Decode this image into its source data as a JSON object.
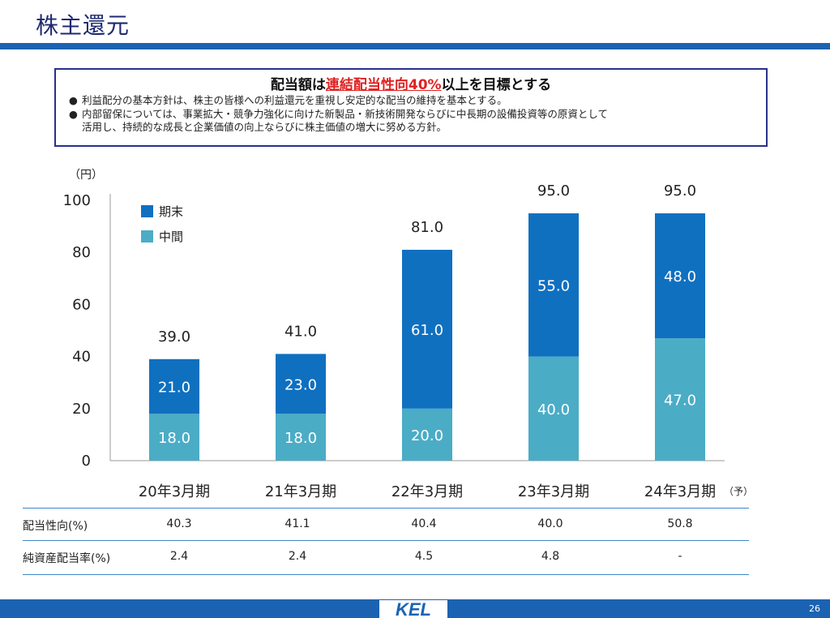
{
  "page": {
    "title": "株主還元",
    "page_number": "26",
    "logo_text": "KEL"
  },
  "policy": {
    "headline_prefix": "配当額は",
    "headline_highlight": "連結配当性向40%",
    "headline_suffix": "以上を目標とする",
    "bullets": [
      {
        "lines": [
          "利益配分の基本方針は、株主の皆様への利益還元を重視し安定的な配当の維持を基本とする。"
        ]
      },
      {
        "lines": [
          "内部留保については、事業拡大・競争力強化に向けた新製品・新技術開発ならびに中長期の設備投資等の原資として",
          "活用し、持続的な成長と企業価値の向上ならびに株主価値の増大に努める方針。"
        ]
      }
    ],
    "bullet_glyph": "●"
  },
  "chart_data": {
    "type": "bar",
    "stacked": true,
    "unit_label": "（円）",
    "categories": [
      "20年3月期",
      "21年3月期",
      "22年3月期",
      "23年3月期",
      "24年3月期"
    ],
    "category_suffixes": [
      "",
      "",
      "",
      "",
      "（予）"
    ],
    "series": [
      {
        "name": "中間",
        "values": [
          18.0,
          18.0,
          20.0,
          40.0,
          47.0
        ],
        "color": "#4bacc6",
        "label_color": "#ffffff"
      },
      {
        "name": "期末",
        "values": [
          21.0,
          23.0,
          61.0,
          55.0,
          48.0
        ],
        "color": "#0f70c0",
        "label_color": "#ffffff"
      }
    ],
    "totals": [
      39.0,
      41.0,
      81.0,
      95.0,
      95.0
    ],
    "ylim": [
      0,
      100
    ],
    "yticks": [
      0,
      20,
      40,
      60,
      80,
      100
    ],
    "legend_order": [
      "期末",
      "中間"
    ],
    "legend_position": "top-left",
    "grid": false
  },
  "table": {
    "rows": [
      {
        "label": "配当性向(%)",
        "values": [
          "40.3",
          "41.1",
          "40.4",
          "40.0",
          "50.8"
        ]
      },
      {
        "label": "純資産配当率(%)",
        "values": [
          "2.4",
          "2.4",
          "4.5",
          "4.8",
          "-"
        ]
      }
    ]
  },
  "colors": {
    "title": "#1f2a70",
    "brand_blue": "#1b63b2",
    "highlight_red": "#e02020",
    "box_border": "#2a2f8a"
  }
}
